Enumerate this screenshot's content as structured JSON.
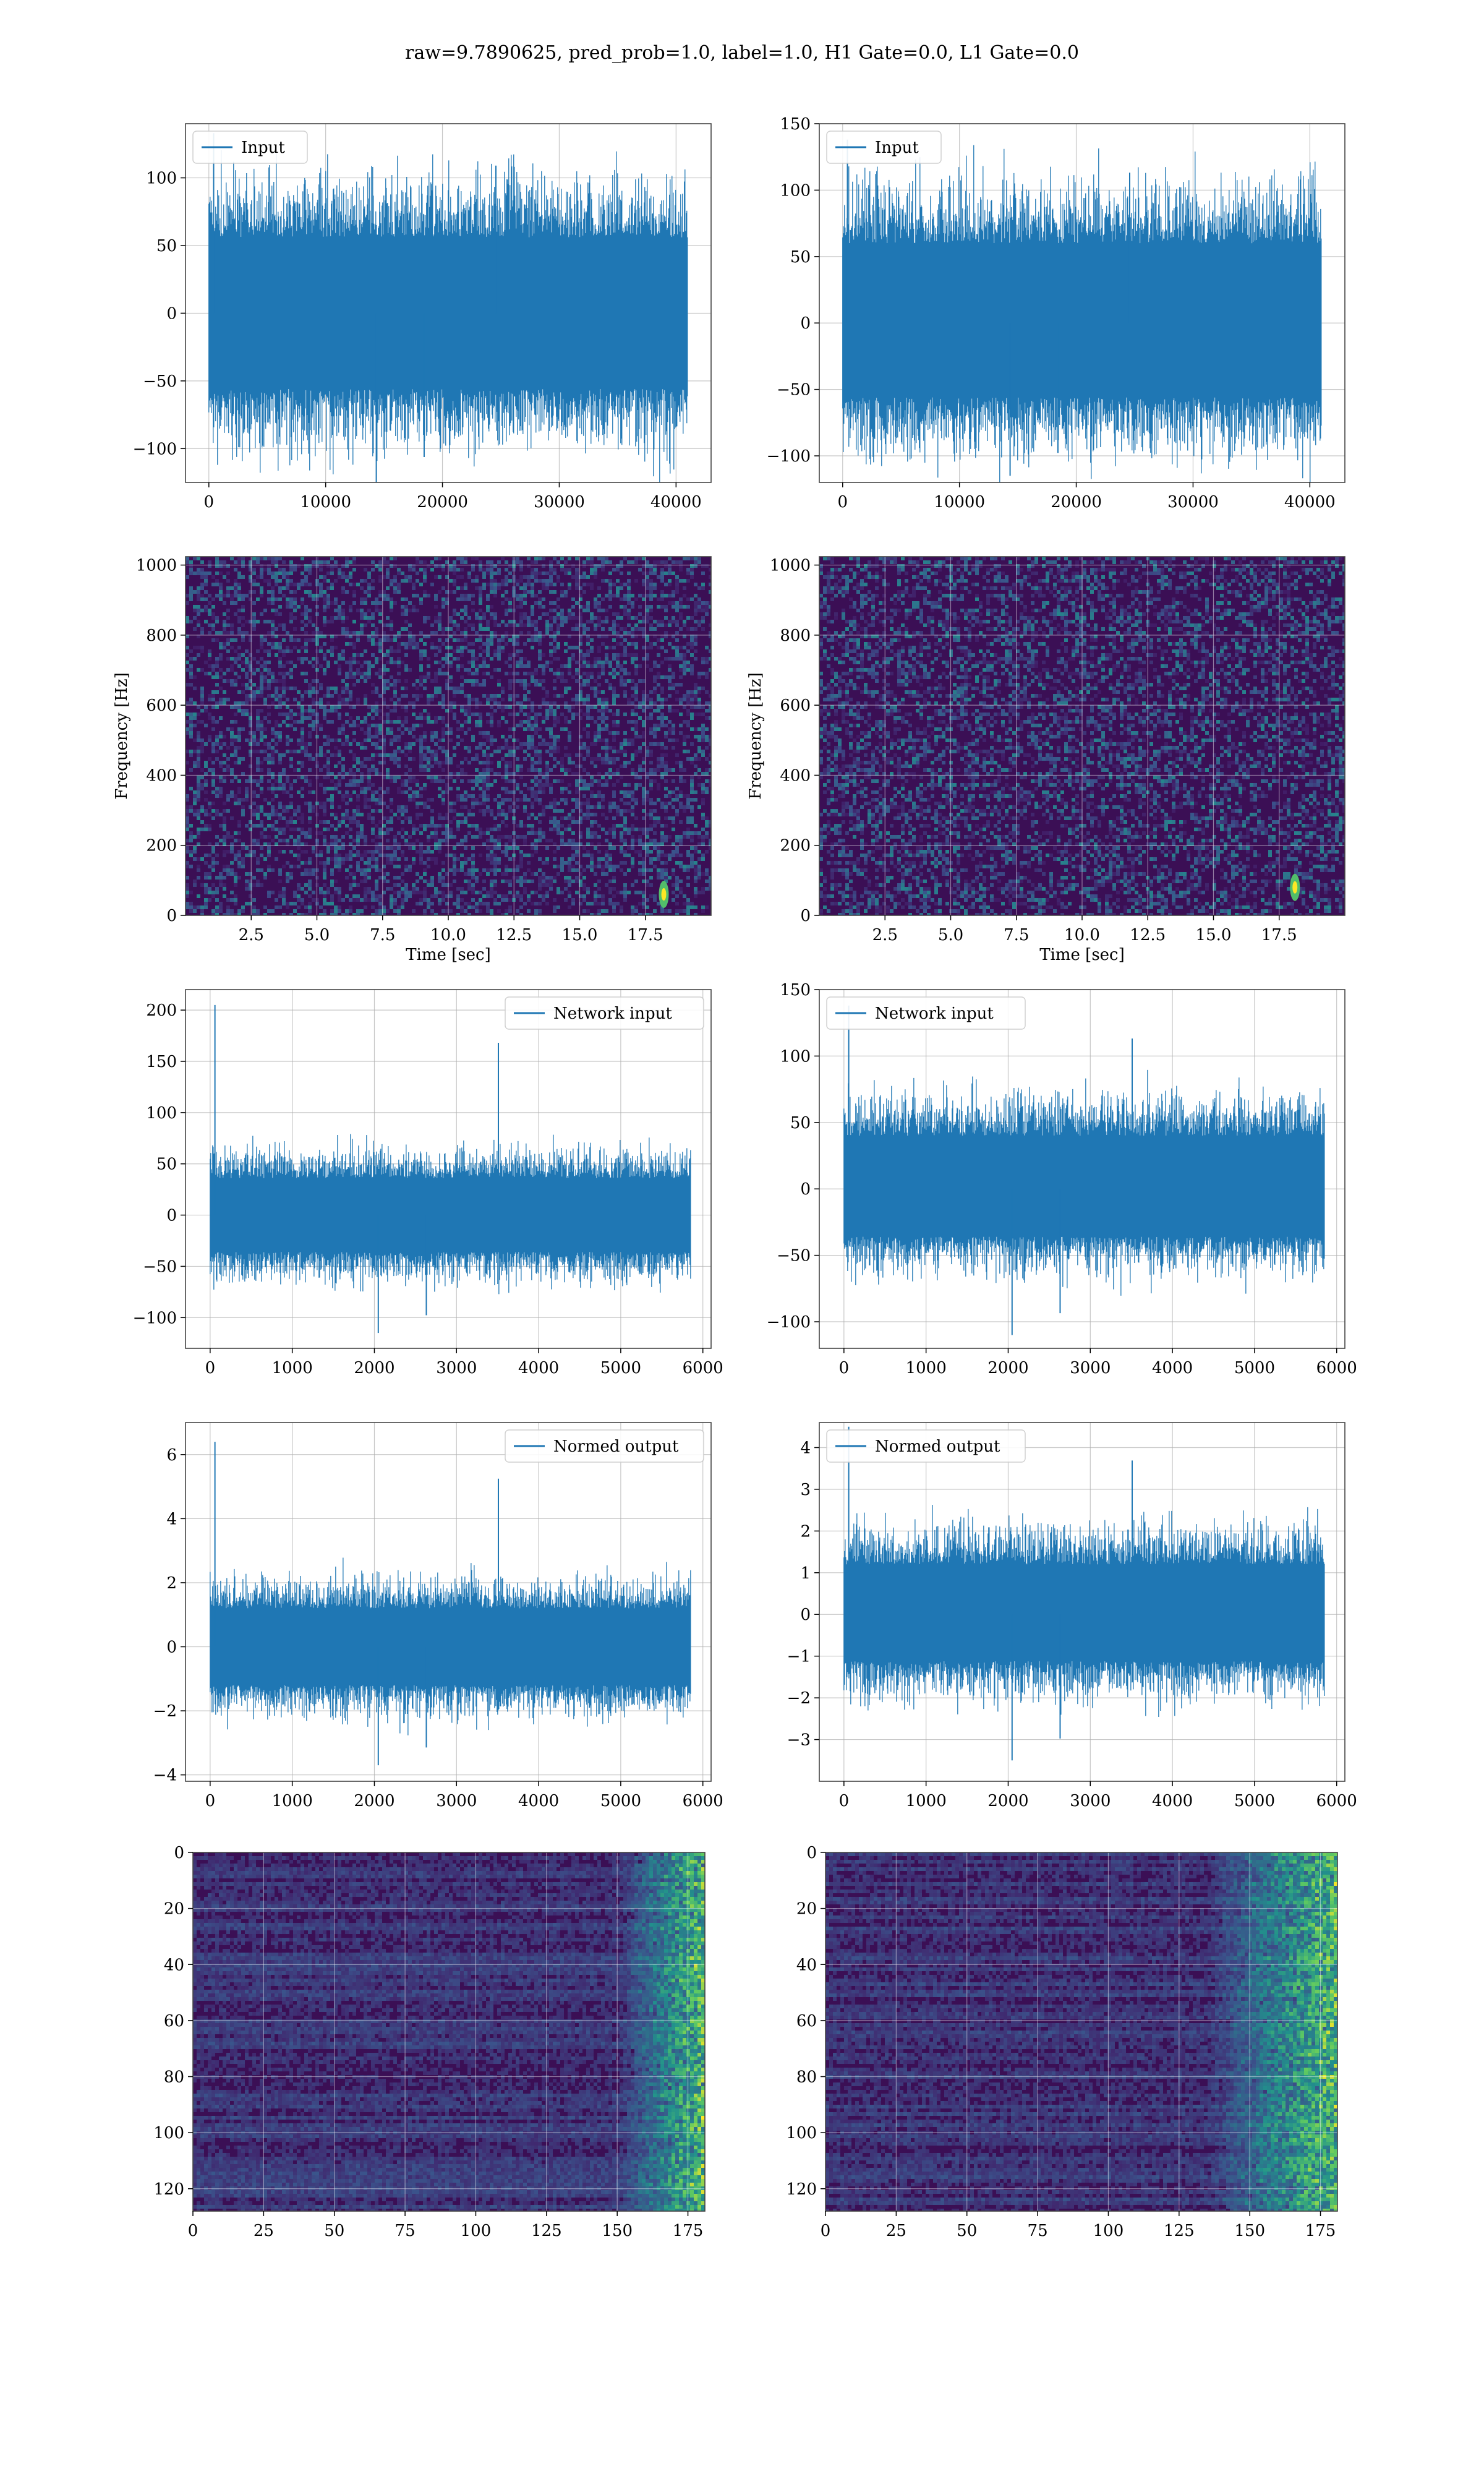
{
  "suptitle": "raw=9.7890625, pred_prob=1.0, label=1.0, H1 Gate=0.0, L1 Gate=0.0",
  "colors": {
    "line": "#1f77b4",
    "grid": "#b0b0b0",
    "spec_bg": "#3b0f55",
    "spec_hot": "#fde725"
  },
  "chart_data": [
    {
      "type": "line",
      "panel": "row1-left",
      "legend": "Input",
      "legend_loc": "upper-left",
      "xlim": [
        -2000,
        43000
      ],
      "ylim": [
        -125,
        140
      ],
      "xticks": [
        0,
        10000,
        20000,
        30000,
        40000
      ],
      "yticks": [
        -100,
        -50,
        0,
        50,
        100
      ],
      "x_range": [
        0,
        40960
      ],
      "envelope": [
        -70,
        70
      ],
      "spike_max": 133,
      "spike_min": -125,
      "grid": true
    },
    {
      "type": "line",
      "panel": "row1-right",
      "legend": "Input",
      "legend_loc": "upper-left",
      "xlim": [
        -2000,
        43000
      ],
      "ylim": [
        -120,
        150
      ],
      "xticks": [
        0,
        10000,
        20000,
        30000,
        40000
      ],
      "yticks": [
        -100,
        -50,
        0,
        50,
        100,
        150
      ],
      "x_range": [
        0,
        40960
      ],
      "envelope": [
        -70,
        75
      ],
      "spike_max": 138,
      "spike_min": -115,
      "grid": true
    },
    {
      "type": "heatmap",
      "panel": "row2-left",
      "xlabel": "Time [sec]",
      "ylabel": "Frequency [Hz]",
      "xlim": [
        0,
        20
      ],
      "ylim": [
        0,
        1024
      ],
      "xticks": [
        2.5,
        5.0,
        7.5,
        10.0,
        12.5,
        15.0,
        17.5
      ],
      "yticks": [
        0,
        200,
        400,
        600,
        800,
        1000
      ],
      "xtick_labels": [
        "2.5",
        "5.0",
        "7.5",
        "10.0",
        "12.5",
        "15.0",
        "17.5"
      ],
      "hotspot": {
        "t": 18.2,
        "f": 60
      },
      "grid": true
    },
    {
      "type": "heatmap",
      "panel": "row2-right",
      "xlabel": "Time [sec]",
      "ylabel": "Frequency [Hz]",
      "xlim": [
        0,
        20
      ],
      "ylim": [
        0,
        1024
      ],
      "xticks": [
        2.5,
        5.0,
        7.5,
        10.0,
        12.5,
        15.0,
        17.5
      ],
      "yticks": [
        0,
        200,
        400,
        600,
        800,
        1000
      ],
      "xtick_labels": [
        "2.5",
        "5.0",
        "7.5",
        "10.0",
        "12.5",
        "15.0",
        "17.5"
      ],
      "hotspot": {
        "t": 18.1,
        "f": 80
      },
      "grid": true
    },
    {
      "type": "line",
      "panel": "row3-left",
      "legend": "Network input",
      "legend_loc": "upper-right",
      "xlim": [
        -300,
        6100
      ],
      "ylim": [
        -130,
        220
      ],
      "xticks": [
        0,
        1000,
        2000,
        3000,
        4000,
        5000,
        6000
      ],
      "yticks": [
        -100,
        -50,
        0,
        50,
        100,
        150,
        200
      ],
      "x_range": [
        0,
        5850
      ],
      "envelope": [
        -45,
        45
      ],
      "spike_max": 205,
      "spike_min": -115,
      "grid": true
    },
    {
      "type": "line",
      "panel": "row3-right",
      "legend": "Network input",
      "legend_loc": "upper-left",
      "xlim": [
        -300,
        6100
      ],
      "ylim": [
        -120,
        150
      ],
      "xticks": [
        0,
        1000,
        2000,
        3000,
        4000,
        5000,
        6000
      ],
      "yticks": [
        -100,
        -50,
        0,
        50,
        100,
        150
      ],
      "x_range": [
        0,
        5850
      ],
      "envelope": [
        -45,
        50
      ],
      "spike_max": 138,
      "spike_min": -110,
      "grid": true
    },
    {
      "type": "line",
      "panel": "row4-left",
      "legend": "Normed output",
      "legend_loc": "upper-right",
      "xlim": [
        -300,
        6100
      ],
      "ylim": [
        -4.2,
        7.0
      ],
      "xticks": [
        0,
        1000,
        2000,
        3000,
        4000,
        5000,
        6000
      ],
      "yticks": [
        -4,
        -2,
        0,
        2,
        4,
        6
      ],
      "x_range": [
        0,
        5850
      ],
      "envelope": [
        -1.5,
        1.5
      ],
      "spike_max": 6.4,
      "spike_min": -3.7,
      "grid": true
    },
    {
      "type": "line",
      "panel": "row4-right",
      "legend": "Normed output",
      "legend_loc": "upper-left",
      "xlim": [
        -300,
        6100
      ],
      "ylim": [
        -4.0,
        4.6
      ],
      "xticks": [
        0,
        1000,
        2000,
        3000,
        4000,
        5000,
        6000
      ],
      "yticks": [
        -3,
        -2,
        -1,
        0,
        1,
        2,
        3,
        4
      ],
      "x_range": [
        0,
        5850
      ],
      "envelope": [
        -1.4,
        1.5
      ],
      "spike_max": 4.5,
      "spike_min": -3.5,
      "grid": true
    },
    {
      "type": "heatmap",
      "panel": "row5-left",
      "xlim": [
        0,
        181
      ],
      "ylim": [
        128,
        0
      ],
      "xticks": [
        0,
        25,
        50,
        75,
        100,
        125,
        150,
        175
      ],
      "yticks": [
        0,
        20,
        40,
        60,
        80,
        100,
        120
      ],
      "bright_band_x": [
        150,
        181
      ],
      "grid": true
    },
    {
      "type": "heatmap",
      "panel": "row5-right",
      "xlim": [
        0,
        181
      ],
      "ylim": [
        128,
        0
      ],
      "xticks": [
        0,
        25,
        50,
        75,
        100,
        125,
        150,
        175
      ],
      "yticks": [
        0,
        20,
        40,
        60,
        80,
        100,
        120
      ],
      "bright_band_x": [
        135,
        181
      ],
      "grid": true
    }
  ]
}
